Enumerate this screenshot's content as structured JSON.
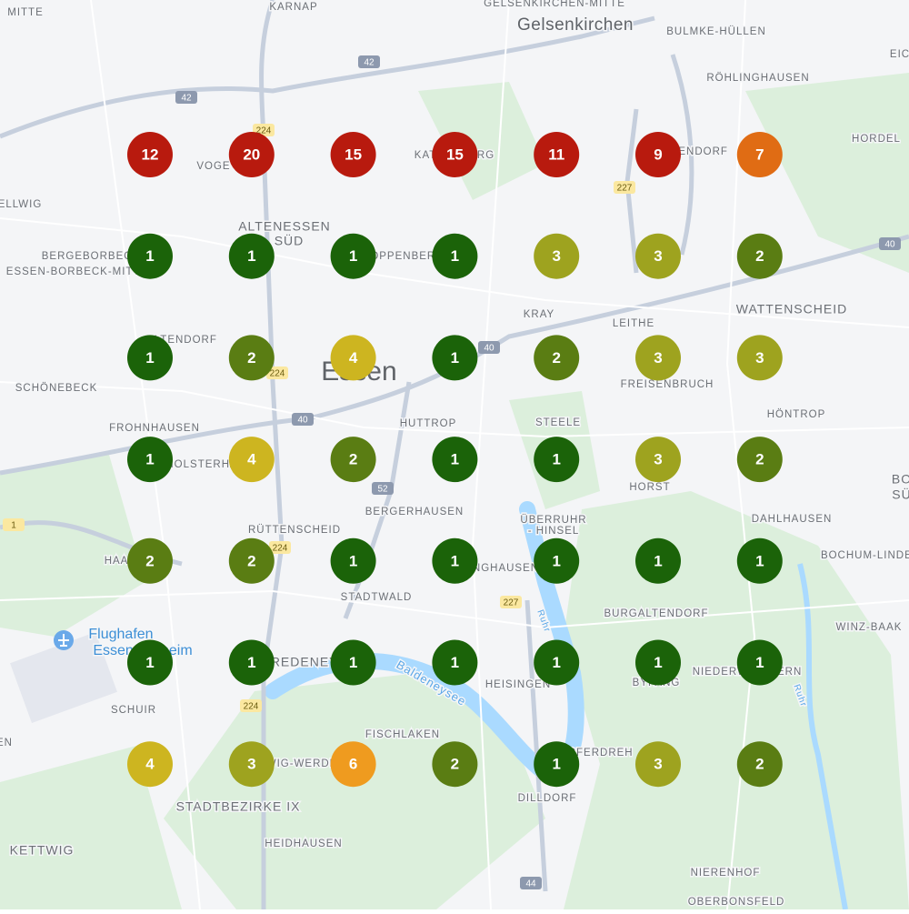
{
  "map": {
    "places": [
      "MITTE",
      "KARNAP",
      "GELSENKIRCHEN-MITTE",
      "Gelsenkirchen",
      "BULMKE-HÜLLEN",
      "EIC",
      "RÖHLINGHAUSEN",
      "HORDEL",
      "VOGE",
      "KATERNBERG",
      "ÜCKENDORF",
      "ELLWIG",
      "ALTENESSEN",
      "SÜD",
      "BERGEBORBECK",
      "ESSEN-BORBECK-MITTE",
      "STOPPENBERG",
      "WATTENSCHEID",
      "KRAY",
      "LEITHE",
      "ALTENDORF",
      "Essen",
      "SCHÖNEBECK",
      "FREISENBRUCH",
      "HÖNTROP",
      "FROHNHAUSEN",
      "HUTTROP",
      "STEELE",
      "HOLSTERHAUSEN",
      "HORST",
      "BO",
      "SÜ",
      "BERGERHAUSEN",
      "ÜBERRUHR",
      "- HINSEL",
      "DAHLHAUSEN",
      "RÜTTENSCHEID",
      "BOCHUM-LINDEN",
      "HAARZOPF",
      "RELLINGHAUSEN",
      "STADTWALD",
      "BURGALTENDORF",
      "WINZ-BAAK",
      "Flughafen",
      "Essen/Mülheim",
      "BREDENEY",
      "Baldeneysee",
      "HEISINGEN",
      "BYFANG",
      "NIEDERWENIGERN",
      "SCHUIR",
      "Ruhr",
      "Ruhr",
      "FISCHLAKEN",
      "KUPFERDREH",
      "EN",
      "KETTWIG-WERDEN",
      "STADTBEZIRKE IX",
      "DILLDORF",
      "KETTWIG",
      "HEIDHAUSEN",
      "NIERENHOF",
      "OBERBONSFELD"
    ],
    "roads": [
      "42",
      "42",
      "224",
      "224",
      "224",
      "224",
      "227",
      "227",
      "40",
      "40",
      "40",
      "52",
      "1",
      "44"
    ],
    "clusters": [
      [
        {
          "count": 12,
          "color": "#b81a0e"
        },
        {
          "count": 20,
          "color": "#b81a0e"
        },
        {
          "count": 15,
          "color": "#b81a0e"
        },
        {
          "count": 15,
          "color": "#b81a0e"
        },
        {
          "count": 11,
          "color": "#b81a0e"
        },
        {
          "count": 9,
          "color": "#b81a0e"
        },
        {
          "count": 7,
          "color": "#e06c14"
        }
      ],
      [
        {
          "count": 1,
          "color": "#1b6309"
        },
        {
          "count": 1,
          "color": "#1b6309"
        },
        {
          "count": 1,
          "color": "#1b6309"
        },
        {
          "count": 1,
          "color": "#1b6309"
        },
        {
          "count": 3,
          "color": "#9ea31f"
        },
        {
          "count": 3,
          "color": "#9ea31f"
        },
        {
          "count": 2,
          "color": "#5a7d13"
        }
      ],
      [
        {
          "count": 1,
          "color": "#1b6309"
        },
        {
          "count": 2,
          "color": "#5a7d13"
        },
        {
          "count": 4,
          "color": "#cdb520"
        },
        {
          "count": 1,
          "color": "#1b6309"
        },
        {
          "count": 2,
          "color": "#5a7d13"
        },
        {
          "count": 3,
          "color": "#9ea31f"
        },
        {
          "count": 3,
          "color": "#9ea31f"
        }
      ],
      [
        {
          "count": 1,
          "color": "#1b6309"
        },
        {
          "count": 4,
          "color": "#cdb520"
        },
        {
          "count": 2,
          "color": "#5a7d13"
        },
        {
          "count": 1,
          "color": "#1b6309"
        },
        {
          "count": 1,
          "color": "#1b6309"
        },
        {
          "count": 3,
          "color": "#9ea31f"
        },
        {
          "count": 2,
          "color": "#5a7d13"
        }
      ],
      [
        {
          "count": 2,
          "color": "#5a7d13"
        },
        {
          "count": 2,
          "color": "#5a7d13"
        },
        {
          "count": 1,
          "color": "#1b6309"
        },
        {
          "count": 1,
          "color": "#1b6309"
        },
        {
          "count": 1,
          "color": "#1b6309"
        },
        {
          "count": 1,
          "color": "#1b6309"
        },
        {
          "count": 1,
          "color": "#1b6309"
        }
      ],
      [
        {
          "count": 1,
          "color": "#1b6309"
        },
        {
          "count": 1,
          "color": "#1b6309"
        },
        {
          "count": 1,
          "color": "#1b6309"
        },
        {
          "count": 1,
          "color": "#1b6309"
        },
        {
          "count": 1,
          "color": "#1b6309"
        },
        {
          "count": 1,
          "color": "#1b6309"
        },
        {
          "count": 1,
          "color": "#1b6309"
        }
      ],
      [
        {
          "count": 4,
          "color": "#cdb520"
        },
        {
          "count": 3,
          "color": "#9ea31f"
        },
        {
          "count": 6,
          "color": "#ef9b1f"
        },
        {
          "count": 2,
          "color": "#5a7d13"
        },
        {
          "count": 1,
          "color": "#1b6309"
        },
        {
          "count": 3,
          "color": "#9ea31f"
        },
        {
          "count": 2,
          "color": "#5a7d13"
        }
      ]
    ]
  }
}
